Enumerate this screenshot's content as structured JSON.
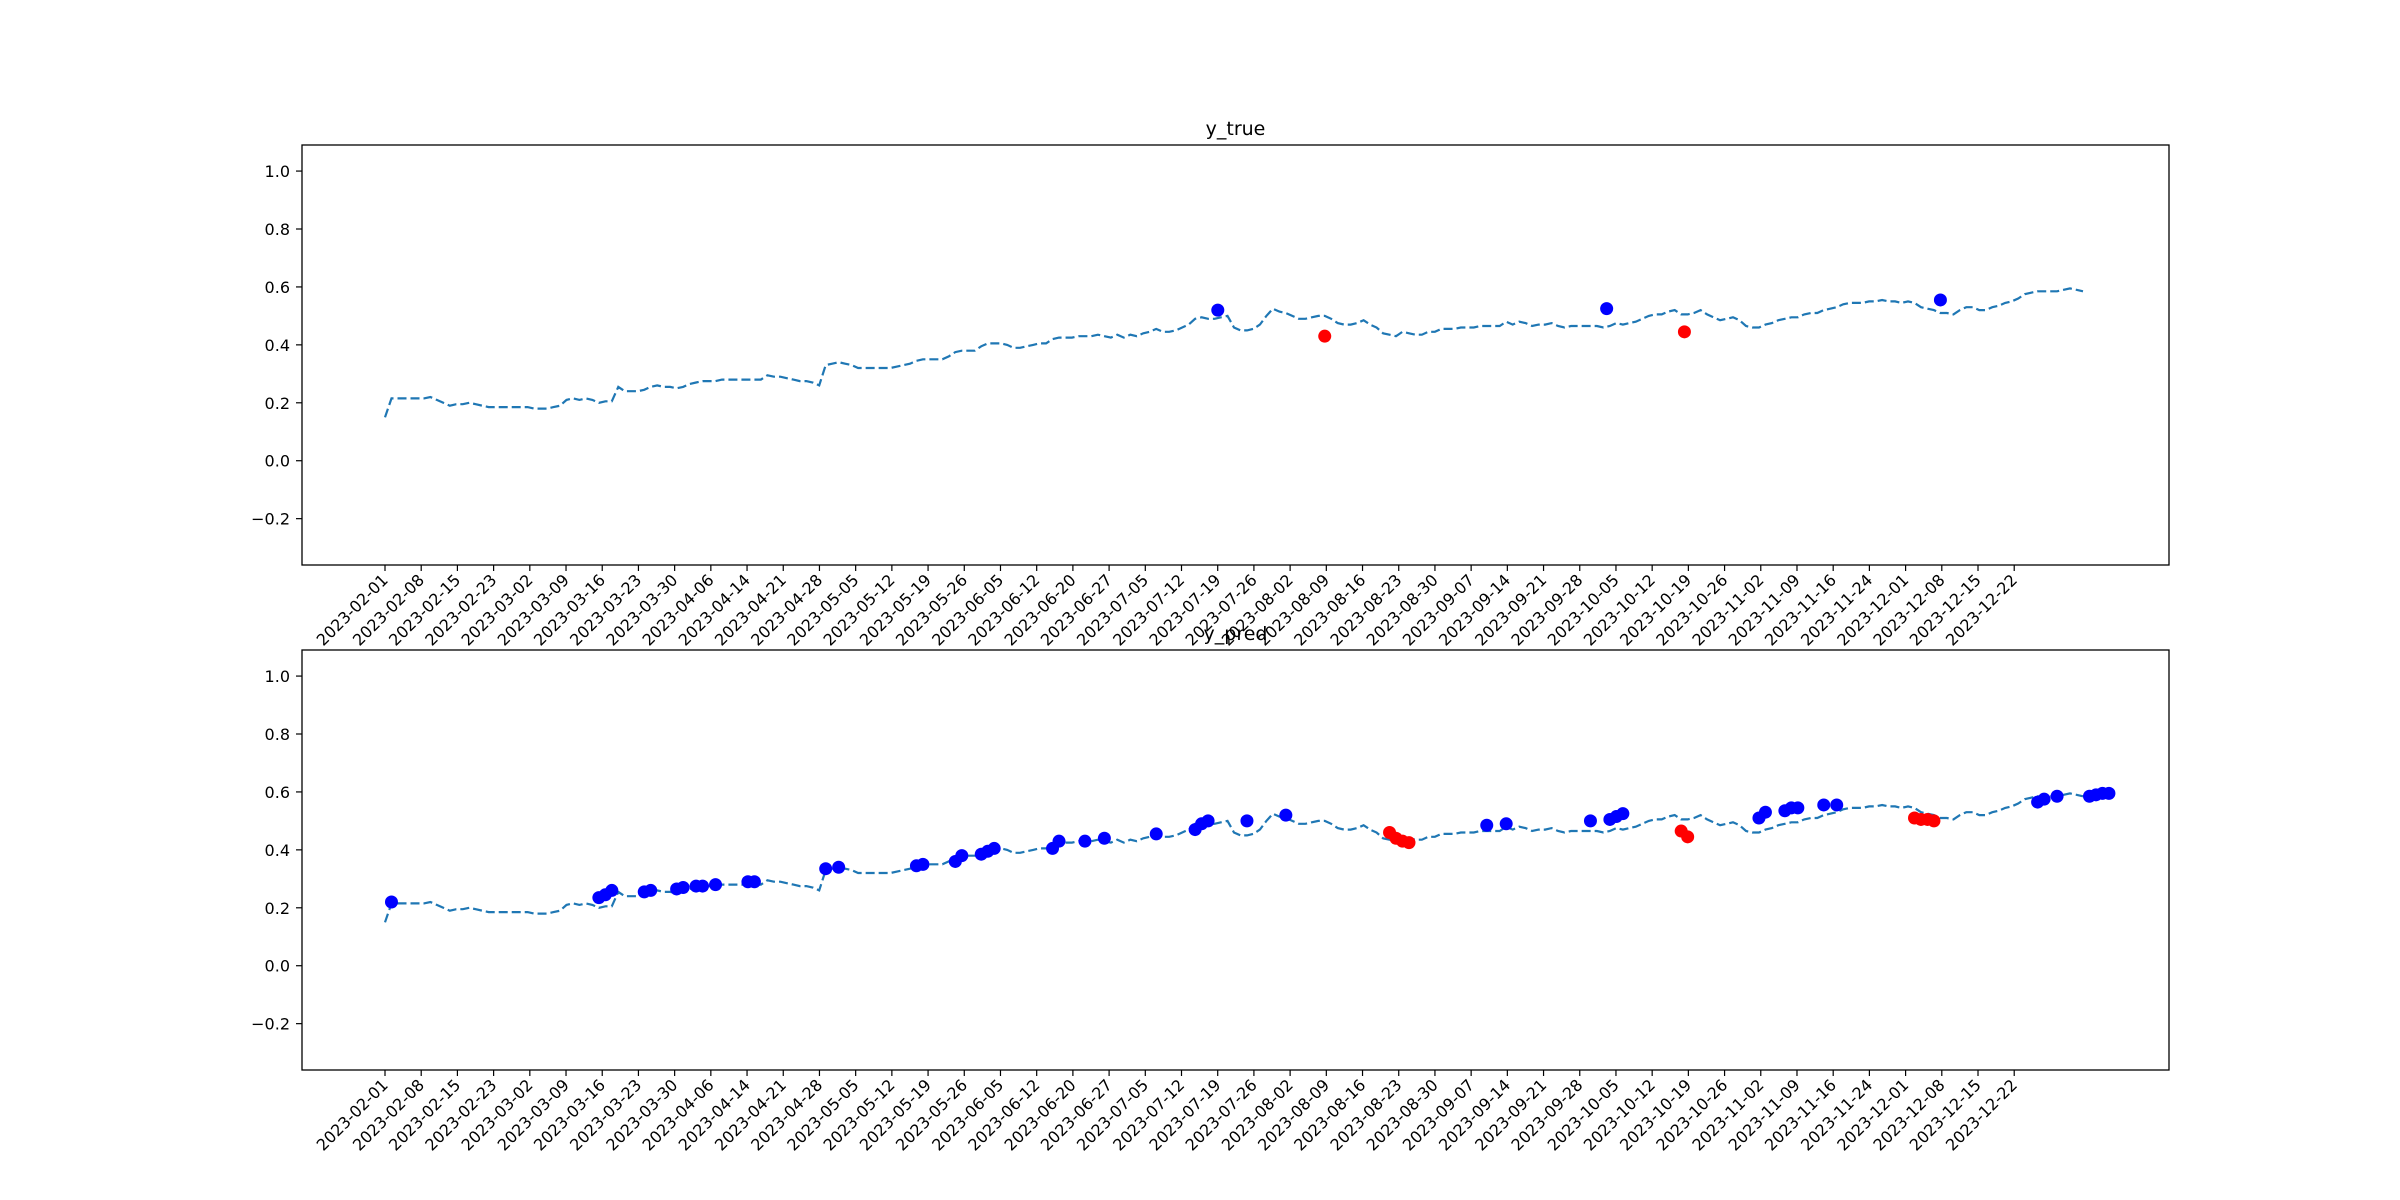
{
  "chart_data": [
    {
      "type": "line",
      "title": "y_true",
      "ylim": [
        -0.36,
        1.09
      ],
      "yticks": [
        "−0.2",
        "0.0",
        "0.2",
        "0.4",
        "0.6",
        "0.8",
        "1.0"
      ],
      "ytick_values": [
        -0.2,
        0.0,
        0.2,
        0.4,
        0.6,
        0.8,
        1.0
      ],
      "xticks": [
        "2023-02-01",
        "2023-02-08",
        "2023-02-15",
        "2023-02-23",
        "2023-03-02",
        "2023-03-09",
        "2023-03-16",
        "2023-03-23",
        "2023-03-30",
        "2023-04-06",
        "2023-04-14",
        "2023-04-21",
        "2023-04-28",
        "2023-05-05",
        "2023-05-12",
        "2023-05-19",
        "2023-05-26",
        "2023-06-05",
        "2023-06-12",
        "2023-06-20",
        "2023-06-27",
        "2023-07-05",
        "2023-07-12",
        "2023-07-19",
        "2023-07-26",
        "2023-08-02",
        "2023-08-09",
        "2023-08-16",
        "2023-08-23",
        "2023-08-30",
        "2023-09-07",
        "2023-09-14",
        "2023-09-21",
        "2023-09-28",
        "2023-10-05",
        "2023-10-12",
        "2023-10-19",
        "2023-10-26",
        "2023-11-02",
        "2023-11-09",
        "2023-11-16",
        "2023-11-24",
        "2023-12-01",
        "2023-12-08",
        "2023-12-15",
        "2023-12-22"
      ],
      "grid": false,
      "line_color": "#1f77b4",
      "line_style": "dashed",
      "markers_blue": [
        {
          "x": 128.5,
          "y": 0.52
        },
        {
          "x": 188.5,
          "y": 0.525
        },
        {
          "x": 240.0,
          "y": 0.555
        }
      ],
      "markers_red": [
        {
          "x": 145.0,
          "y": 0.43
        },
        {
          "x": 200.5,
          "y": 0.445
        }
      ]
    },
    {
      "type": "line",
      "title": "y_pred",
      "ylim": [
        -0.36,
        1.09
      ],
      "yticks": [
        "−0.2",
        "0.0",
        "0.2",
        "0.4",
        "0.6",
        "0.8",
        "1.0"
      ],
      "ytick_values": [
        -0.2,
        0.0,
        0.2,
        0.4,
        0.6,
        0.8,
        1.0
      ],
      "xticks": [
        "2023-02-01",
        "2023-02-08",
        "2023-02-15",
        "2023-02-23",
        "2023-03-02",
        "2023-03-09",
        "2023-03-16",
        "2023-03-23",
        "2023-03-30",
        "2023-04-06",
        "2023-04-14",
        "2023-04-21",
        "2023-04-28",
        "2023-05-05",
        "2023-05-12",
        "2023-05-19",
        "2023-05-26",
        "2023-06-05",
        "2023-06-12",
        "2023-06-20",
        "2023-06-27",
        "2023-07-05",
        "2023-07-12",
        "2023-07-19",
        "2023-07-26",
        "2023-08-02",
        "2023-08-09",
        "2023-08-16",
        "2023-08-23",
        "2023-08-30",
        "2023-09-07",
        "2023-09-14",
        "2023-09-21",
        "2023-09-28",
        "2023-10-05",
        "2023-10-12",
        "2023-10-19",
        "2023-10-26",
        "2023-11-02",
        "2023-11-09",
        "2023-11-16",
        "2023-11-24",
        "2023-12-01",
        "2023-12-08",
        "2023-12-15",
        "2023-12-22"
      ],
      "grid": false,
      "line_color": "#1f77b4",
      "line_style": "dashed",
      "markers_blue": [
        {
          "x": 1,
          "y": 0.22
        },
        {
          "x": 33,
          "y": 0.235
        },
        {
          "x": 34,
          "y": 0.245
        },
        {
          "x": 35,
          "y": 0.26
        },
        {
          "x": 40,
          "y": 0.255
        },
        {
          "x": 41,
          "y": 0.26
        },
        {
          "x": 45,
          "y": 0.265
        },
        {
          "x": 46,
          "y": 0.27
        },
        {
          "x": 48,
          "y": 0.275
        },
        {
          "x": 49,
          "y": 0.275
        },
        {
          "x": 51,
          "y": 0.28
        },
        {
          "x": 56,
          "y": 0.29
        },
        {
          "x": 57,
          "y": 0.29
        },
        {
          "x": 68,
          "y": 0.335
        },
        {
          "x": 70,
          "y": 0.34
        },
        {
          "x": 82,
          "y": 0.345
        },
        {
          "x": 83,
          "y": 0.35
        },
        {
          "x": 88,
          "y": 0.36
        },
        {
          "x": 89,
          "y": 0.38
        },
        {
          "x": 92,
          "y": 0.385
        },
        {
          "x": 93,
          "y": 0.395
        },
        {
          "x": 94,
          "y": 0.405
        },
        {
          "x": 103,
          "y": 0.405
        },
        {
          "x": 104,
          "y": 0.43
        },
        {
          "x": 108,
          "y": 0.43
        },
        {
          "x": 111,
          "y": 0.44
        },
        {
          "x": 119,
          "y": 0.455
        },
        {
          "x": 125,
          "y": 0.47
        },
        {
          "x": 126,
          "y": 0.49
        },
        {
          "x": 127,
          "y": 0.5
        },
        {
          "x": 133,
          "y": 0.5
        },
        {
          "x": 139,
          "y": 0.52
        },
        {
          "x": 170,
          "y": 0.485
        },
        {
          "x": 173,
          "y": 0.49
        },
        {
          "x": 186,
          "y": 0.5
        },
        {
          "x": 189,
          "y": 0.505
        },
        {
          "x": 190,
          "y": 0.515
        },
        {
          "x": 191,
          "y": 0.525
        },
        {
          "x": 212,
          "y": 0.51
        },
        {
          "x": 213,
          "y": 0.53
        },
        {
          "x": 216,
          "y": 0.535
        },
        {
          "x": 217,
          "y": 0.545
        },
        {
          "x": 218,
          "y": 0.545
        },
        {
          "x": 222,
          "y": 0.555
        },
        {
          "x": 224,
          "y": 0.555
        },
        {
          "x": 255,
          "y": 0.565
        },
        {
          "x": 256,
          "y": 0.575
        },
        {
          "x": 258,
          "y": 0.585
        },
        {
          "x": 263,
          "y": 0.585
        },
        {
          "x": 264,
          "y": 0.59
        },
        {
          "x": 265,
          "y": 0.595
        },
        {
          "x": 266,
          "y": 0.595
        }
      ],
      "markers_red": [
        {
          "x": 155,
          "y": 0.46
        },
        {
          "x": 156,
          "y": 0.44
        },
        {
          "x": 157,
          "y": 0.43
        },
        {
          "x": 158,
          "y": 0.425
        },
        {
          "x": 200,
          "y": 0.465
        },
        {
          "x": 201,
          "y": 0.445
        },
        {
          "x": 236,
          "y": 0.51
        },
        {
          "x": 237,
          "y": 0.505
        },
        {
          "x": 238,
          "y": 0.505
        },
        {
          "x": 239,
          "y": 0.5
        }
      ]
    }
  ],
  "series_values": [
    0.15,
    0.215,
    0.215,
    0.215,
    0.215,
    0.215,
    0.215,
    0.22,
    0.21,
    0.2,
    0.19,
    0.195,
    0.195,
    0.2,
    0.195,
    0.19,
    0.185,
    0.185,
    0.185,
    0.185,
    0.185,
    0.185,
    0.185,
    0.18,
    0.18,
    0.18,
    0.185,
    0.19,
    0.21,
    0.215,
    0.21,
    0.215,
    0.21,
    0.2,
    0.205,
    0.205,
    0.255,
    0.24,
    0.24,
    0.24,
    0.245,
    0.255,
    0.26,
    0.255,
    0.255,
    0.25,
    0.255,
    0.265,
    0.27,
    0.275,
    0.275,
    0.275,
    0.28,
    0.28,
    0.28,
    0.28,
    0.28,
    0.28,
    0.28,
    0.295,
    0.29,
    0.29,
    0.285,
    0.28,
    0.275,
    0.275,
    0.27,
    0.26,
    0.33,
    0.335,
    0.34,
    0.335,
    0.33,
    0.32,
    0.32,
    0.32,
    0.32,
    0.32,
    0.32,
    0.325,
    0.33,
    0.335,
    0.345,
    0.35,
    0.35,
    0.35,
    0.35,
    0.36,
    0.375,
    0.38,
    0.38,
    0.38,
    0.395,
    0.405,
    0.405,
    0.405,
    0.4,
    0.39,
    0.39,
    0.395,
    0.4,
    0.405,
    0.405,
    0.42,
    0.425,
    0.425,
    0.425,
    0.43,
    0.43,
    0.43,
    0.435,
    0.43,
    0.425,
    0.435,
    0.425,
    0.435,
    0.43,
    0.44,
    0.445,
    0.455,
    0.445,
    0.445,
    0.45,
    0.46,
    0.47,
    0.49,
    0.495,
    0.49,
    0.49,
    0.495,
    0.5,
    0.46,
    0.45,
    0.45,
    0.455,
    0.47,
    0.5,
    0.525,
    0.515,
    0.51,
    0.5,
    0.49,
    0.49,
    0.495,
    0.5,
    0.5,
    0.49,
    0.475,
    0.47,
    0.47,
    0.475,
    0.485,
    0.47,
    0.46,
    0.44,
    0.435,
    0.43,
    0.445,
    0.44,
    0.435,
    0.435,
    0.445,
    0.445,
    0.455,
    0.455,
    0.455,
    0.46,
    0.46,
    0.46,
    0.465,
    0.465,
    0.465,
    0.465,
    0.48,
    0.47,
    0.48,
    0.475,
    0.465,
    0.47,
    0.47,
    0.475,
    0.465,
    0.46,
    0.465,
    0.465,
    0.465,
    0.465,
    0.465,
    0.46,
    0.465,
    0.475,
    0.47,
    0.475,
    0.48,
    0.49,
    0.5,
    0.505,
    0.505,
    0.515,
    0.52,
    0.505,
    0.505,
    0.51,
    0.52,
    0.505,
    0.495,
    0.485,
    0.49,
    0.495,
    0.485,
    0.465,
    0.46,
    0.46,
    0.47,
    0.475,
    0.485,
    0.49,
    0.495,
    0.495,
    0.505,
    0.51,
    0.51,
    0.52,
    0.525,
    0.53,
    0.54,
    0.545,
    0.545,
    0.545,
    0.55,
    0.55,
    0.555,
    0.55,
    0.55,
    0.545,
    0.55,
    0.545,
    0.53,
    0.525,
    0.52,
    0.51,
    0.51,
    0.505,
    0.52,
    0.53,
    0.53,
    0.52,
    0.52,
    0.53,
    0.535,
    0.545,
    0.55,
    0.56,
    0.575,
    0.58,
    0.585,
    0.585,
    0.585,
    0.585,
    0.59,
    0.595,
    0.59,
    0.585
  ]
}
